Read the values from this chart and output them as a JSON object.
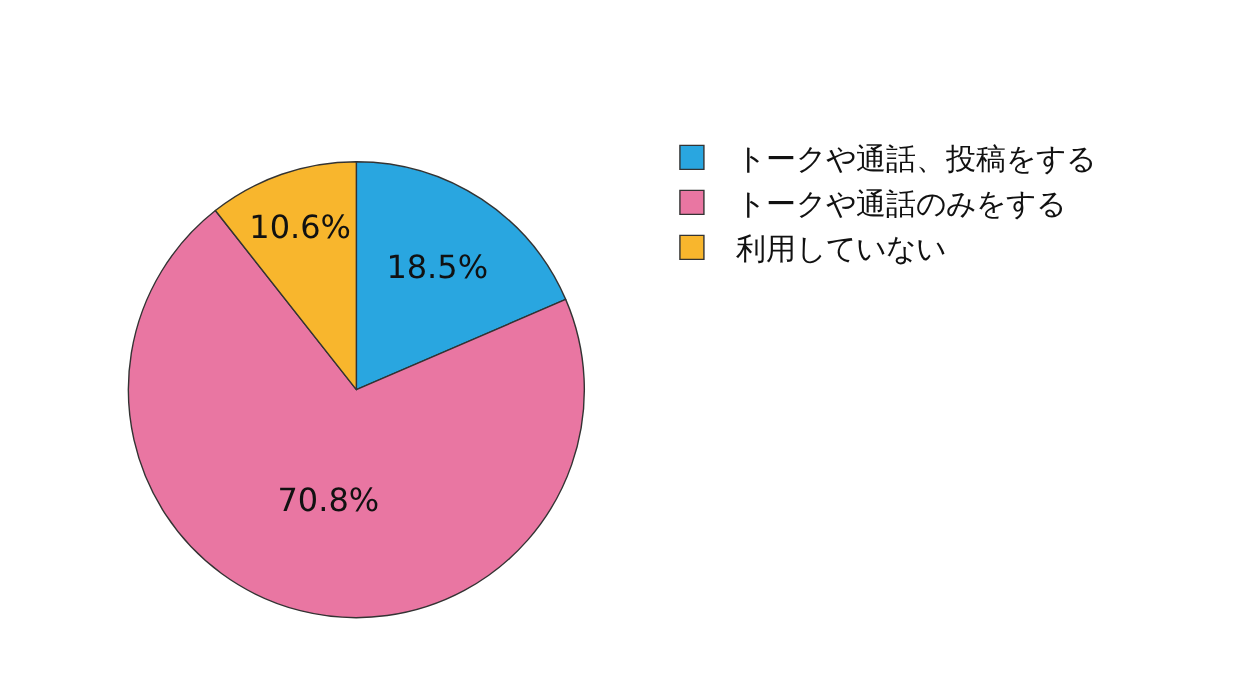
{
  "chart_data": {
    "type": "pie",
    "categories": [
      "トークや通話、投稿をする",
      "トークや通話のみをする",
      "利用していない"
    ],
    "values": [
      18.5,
      70.8,
      10.6
    ],
    "colors": [
      "#29a6e0",
      "#e976a2",
      "#f8b62d"
    ],
    "value_labels": [
      "18.5%",
      "70.8%",
      "10.6%"
    ],
    "legend": "top right"
  }
}
